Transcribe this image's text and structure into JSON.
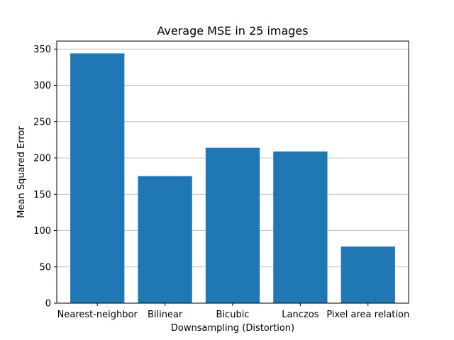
{
  "chart_data": {
    "type": "bar",
    "title": "Average MSE in 25 images",
    "xlabel": "Downsampling (Distortion)",
    "ylabel": "Mean Squared Error",
    "categories": [
      "Nearest-neighbor",
      "Bilinear",
      "Bicubic",
      "Lanczos",
      "Pixel area relation"
    ],
    "values": [
      344,
      175,
      214,
      209,
      78
    ],
    "ylim": [
      0,
      361
    ],
    "yticks": [
      0,
      50,
      100,
      150,
      200,
      250,
      300,
      350
    ],
    "grid": "y",
    "bar_color": "#1f77b4"
  }
}
